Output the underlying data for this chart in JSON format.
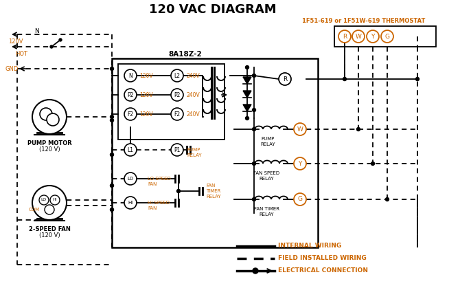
{
  "title": "120 VAC DIAGRAM",
  "title_color": "#000000",
  "title_fontsize": 13,
  "bg_color": "#ffffff",
  "line_color": "#000000",
  "orange_color": "#cc6600",
  "thermostat_label": "1F51-619 or 1F51W-619 THERMOSTAT",
  "control_box_label": "8A18Z-2"
}
